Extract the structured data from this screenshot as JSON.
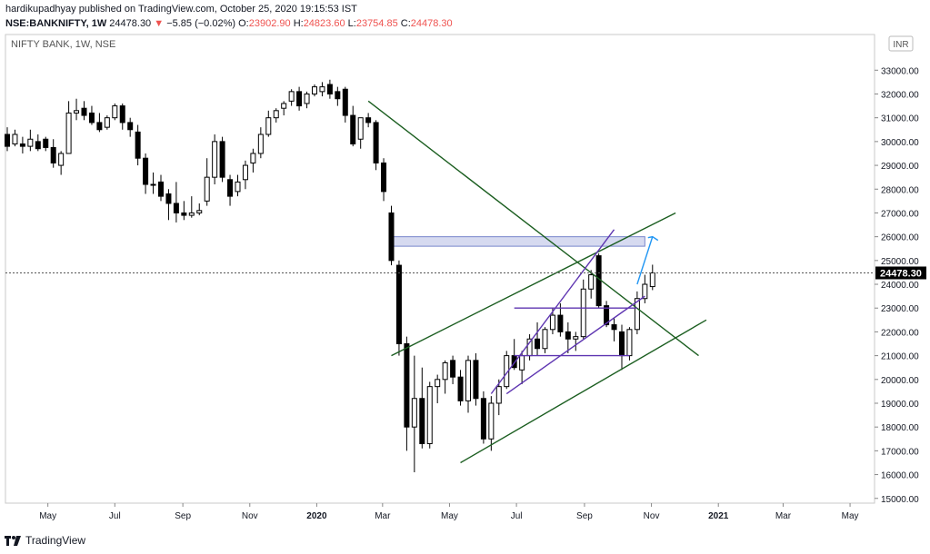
{
  "header": {
    "publisher": "hardikupadhyay published on TradingView.com, October 25, 2020 19:15:53 IST",
    "symbol_line": "NSE:BANKNIFTY, 1W",
    "last": "24478.30",
    "arrow": "▼",
    "change": "−5.85 (−0.02%)",
    "o_label": "O:",
    "o_value": "23902.90",
    "h_label": "H:",
    "h_value": "24823.60",
    "l_label": "L:",
    "l_value": "23754.85",
    "c_label": "C:",
    "c_value": "24478.30"
  },
  "chart_title": "NIFTY BANK, 1W, NSE",
  "currency_badge": "INR",
  "price_label": "24478.30",
  "footer": {
    "brand": "TradingView"
  },
  "colors": {
    "up_fill": "#ffffff",
    "down_fill": "#000000",
    "candle_outline": "#000000",
    "trendline": "#1b5e20",
    "channel": "#5e35b1",
    "rect_fill": "#c5cae9",
    "arrow": "#2196f3"
  },
  "chart_data": {
    "type": "candlestick",
    "title": "NIFTY BANK, 1W, NSE",
    "ylim": [
      14800,
      34500
    ],
    "y_ticks": [
      15000,
      16000,
      17000,
      18000,
      19000,
      20000,
      21000,
      22000,
      23000,
      24000,
      25000,
      26000,
      27000,
      28000,
      29000,
      30000,
      31000,
      32000,
      33000
    ],
    "y_tick_labels": [
      "15000.00",
      "16000.00",
      "17000.00",
      "18000.00",
      "19000.00",
      "20000.00",
      "21000.00",
      "22000.00",
      "23000.00",
      "24000.00",
      "25000.00",
      "26000.00",
      "27000.00",
      "28000.00",
      "29000.00",
      "30000.00",
      "31000.00",
      "32000.00",
      "33000.00"
    ],
    "x_ticks": [
      {
        "label": "May",
        "date": "2019-05-01"
      },
      {
        "label": "Jul",
        "date": "2019-07-01"
      },
      {
        "label": "Sep",
        "date": "2019-09-01"
      },
      {
        "label": "Nov",
        "date": "2019-11-01"
      },
      {
        "label": "2020",
        "date": "2020-01-01"
      },
      {
        "label": "Mar",
        "date": "2020-03-01"
      },
      {
        "label": "May",
        "date": "2020-05-01"
      },
      {
        "label": "Jul",
        "date": "2020-07-01"
      },
      {
        "label": "Sep",
        "date": "2020-09-01"
      },
      {
        "label": "Nov",
        "date": "2020-11-01"
      },
      {
        "label": "2021",
        "date": "2021-01-01"
      },
      {
        "label": "Mar",
        "date": "2021-03-01"
      },
      {
        "label": "May",
        "date": "2021-05-01"
      }
    ],
    "x_range": [
      "2019-03-25",
      "2021-05-20"
    ],
    "candles": [
      {
        "date": "2019-03-25",
        "o": 30300,
        "h": 30600,
        "l": 29600,
        "c": 29800
      },
      {
        "date": "2019-04-01",
        "o": 29900,
        "h": 30500,
        "l": 29800,
        "c": 30300
      },
      {
        "date": "2019-04-08",
        "o": 29900,
        "h": 30200,
        "l": 29500,
        "c": 29800
      },
      {
        "date": "2019-04-15",
        "o": 29800,
        "h": 30500,
        "l": 29600,
        "c": 30100
      },
      {
        "date": "2019-04-22",
        "o": 30000,
        "h": 30300,
        "l": 29600,
        "c": 29700
      },
      {
        "date": "2019-04-29",
        "o": 30100,
        "h": 30200,
        "l": 29600,
        "c": 29750
      },
      {
        "date": "2019-05-06",
        "o": 29750,
        "h": 30100,
        "l": 28900,
        "c": 29100
      },
      {
        "date": "2019-05-13",
        "o": 29000,
        "h": 29600,
        "l": 28600,
        "c": 29500
      },
      {
        "date": "2019-05-20",
        "o": 29500,
        "h": 31700,
        "l": 29500,
        "c": 31200
      },
      {
        "date": "2019-05-27",
        "o": 31200,
        "h": 31800,
        "l": 30900,
        "c": 31300
      },
      {
        "date": "2019-06-03",
        "o": 31400,
        "h": 31700,
        "l": 30900,
        "c": 31100
      },
      {
        "date": "2019-06-10",
        "o": 31200,
        "h": 31500,
        "l": 30700,
        "c": 30800
      },
      {
        "date": "2019-06-17",
        "o": 30800,
        "h": 31200,
        "l": 30400,
        "c": 30500
      },
      {
        "date": "2019-06-24",
        "o": 30600,
        "h": 31100,
        "l": 30500,
        "c": 31000
      },
      {
        "date": "2019-07-01",
        "o": 31000,
        "h": 31600,
        "l": 30900,
        "c": 31500
      },
      {
        "date": "2019-07-08",
        "o": 31500,
        "h": 31600,
        "l": 30500,
        "c": 30800
      },
      {
        "date": "2019-07-15",
        "o": 30800,
        "h": 31000,
        "l": 30200,
        "c": 30500
      },
      {
        "date": "2019-07-22",
        "o": 30400,
        "h": 30700,
        "l": 29000,
        "c": 29300
      },
      {
        "date": "2019-07-29",
        "o": 29300,
        "h": 29500,
        "l": 27800,
        "c": 28200
      },
      {
        "date": "2019-08-05",
        "o": 28200,
        "h": 28700,
        "l": 27800,
        "c": 28200
      },
      {
        "date": "2019-08-12",
        "o": 28300,
        "h": 28600,
        "l": 27500,
        "c": 27700
      },
      {
        "date": "2019-08-19",
        "o": 27800,
        "h": 28000,
        "l": 26700,
        "c": 27400
      },
      {
        "date": "2019-08-26",
        "o": 27400,
        "h": 28300,
        "l": 26600,
        "c": 27000
      },
      {
        "date": "2019-09-02",
        "o": 27000,
        "h": 27500,
        "l": 26700,
        "c": 26900
      },
      {
        "date": "2019-09-09",
        "o": 26900,
        "h": 27700,
        "l": 26800,
        "c": 27000
      },
      {
        "date": "2019-09-16",
        "o": 27000,
        "h": 27400,
        "l": 26900,
        "c": 27100
      },
      {
        "date": "2019-09-23",
        "o": 27500,
        "h": 29300,
        "l": 27300,
        "c": 28500
      },
      {
        "date": "2019-09-30",
        "o": 28500,
        "h": 30300,
        "l": 28200,
        "c": 30000
      },
      {
        "date": "2019-10-07",
        "o": 30000,
        "h": 30200,
        "l": 28300,
        "c": 28500
      },
      {
        "date": "2019-10-14",
        "o": 28400,
        "h": 28600,
        "l": 27300,
        "c": 27700
      },
      {
        "date": "2019-10-21",
        "o": 27900,
        "h": 28600,
        "l": 27700,
        "c": 28300
      },
      {
        "date": "2019-10-28",
        "o": 28400,
        "h": 29200,
        "l": 28000,
        "c": 29000
      },
      {
        "date": "2019-11-04",
        "o": 29100,
        "h": 29700,
        "l": 28700,
        "c": 29500
      },
      {
        "date": "2019-11-11",
        "o": 29500,
        "h": 30600,
        "l": 29300,
        "c": 30300
      },
      {
        "date": "2019-11-18",
        "o": 30300,
        "h": 31300,
        "l": 30200,
        "c": 31000
      },
      {
        "date": "2019-11-25",
        "o": 31000,
        "h": 31400,
        "l": 30800,
        "c": 31300
      },
      {
        "date": "2019-12-02",
        "o": 31400,
        "h": 31700,
        "l": 31100,
        "c": 31600
      },
      {
        "date": "2019-12-09",
        "o": 31700,
        "h": 32200,
        "l": 31500,
        "c": 32100
      },
      {
        "date": "2019-12-16",
        "o": 32100,
        "h": 32300,
        "l": 31300,
        "c": 31500
      },
      {
        "date": "2019-12-23",
        "o": 31600,
        "h": 32100,
        "l": 31400,
        "c": 32000
      },
      {
        "date": "2019-12-30",
        "o": 32000,
        "h": 32400,
        "l": 31900,
        "c": 32300
      },
      {
        "date": "2020-01-06",
        "o": 32100,
        "h": 32500,
        "l": 31900,
        "c": 32300
      },
      {
        "date": "2020-01-13",
        "o": 32400,
        "h": 32600,
        "l": 31800,
        "c": 32000
      },
      {
        "date": "2020-01-20",
        "o": 32100,
        "h": 32300,
        "l": 31500,
        "c": 31800
      },
      {
        "date": "2020-01-27",
        "o": 32200,
        "h": 32300,
        "l": 30800,
        "c": 31100
      },
      {
        "date": "2020-02-03",
        "o": 31100,
        "h": 31500,
        "l": 29800,
        "c": 29900
      },
      {
        "date": "2020-02-10",
        "o": 30100,
        "h": 31000,
        "l": 29700,
        "c": 31000
      },
      {
        "date": "2020-02-17",
        "o": 31000,
        "h": 31200,
        "l": 30600,
        "c": 30800
      },
      {
        "date": "2020-02-24",
        "o": 30800,
        "h": 30900,
        "l": 28800,
        "c": 29100
      },
      {
        "date": "2020-03-02",
        "o": 29100,
        "h": 29300,
        "l": 27500,
        "c": 27900
      },
      {
        "date": "2020-03-09",
        "o": 27000,
        "h": 27300,
        "l": 24800,
        "c": 25000
      },
      {
        "date": "2020-03-16",
        "o": 24800,
        "h": 25000,
        "l": 21000,
        "c": 21500
      },
      {
        "date": "2020-03-23",
        "o": 21500,
        "h": 21800,
        "l": 17000,
        "c": 18000
      },
      {
        "date": "2020-03-30",
        "o": 18000,
        "h": 21000,
        "l": 16100,
        "c": 19200
      },
      {
        "date": "2020-04-06",
        "o": 19200,
        "h": 20500,
        "l": 17100,
        "c": 17300
      },
      {
        "date": "2020-04-13",
        "o": 17300,
        "h": 19900,
        "l": 17100,
        "c": 19700
      },
      {
        "date": "2020-04-20",
        "o": 19700,
        "h": 20200,
        "l": 19000,
        "c": 20000
      },
      {
        "date": "2020-04-27",
        "o": 20000,
        "h": 20800,
        "l": 19400,
        "c": 20700
      },
      {
        "date": "2020-05-04",
        "o": 20800,
        "h": 21000,
        "l": 19800,
        "c": 20100
      },
      {
        "date": "2020-05-11",
        "o": 20100,
        "h": 20400,
        "l": 18900,
        "c": 19100
      },
      {
        "date": "2020-05-18",
        "o": 19100,
        "h": 21000,
        "l": 18600,
        "c": 20800
      },
      {
        "date": "2020-05-25",
        "o": 20800,
        "h": 21100,
        "l": 18900,
        "c": 19200
      },
      {
        "date": "2020-06-01",
        "o": 19200,
        "h": 19500,
        "l": 17300,
        "c": 17500
      },
      {
        "date": "2020-06-08",
        "o": 17500,
        "h": 19300,
        "l": 17000,
        "c": 19000
      },
      {
        "date": "2020-06-15",
        "o": 19000,
        "h": 20000,
        "l": 18500,
        "c": 19700
      },
      {
        "date": "2020-06-22",
        "o": 19700,
        "h": 21200,
        "l": 19600,
        "c": 21000
      },
      {
        "date": "2020-06-29",
        "o": 21000,
        "h": 21700,
        "l": 20400,
        "c": 20500
      },
      {
        "date": "2020-07-06",
        "o": 20400,
        "h": 21200,
        "l": 19800,
        "c": 21000
      },
      {
        "date": "2020-07-13",
        "o": 21000,
        "h": 21900,
        "l": 20800,
        "c": 21700
      },
      {
        "date": "2020-07-20",
        "o": 21700,
        "h": 22400,
        "l": 21000,
        "c": 21300
      },
      {
        "date": "2020-07-27",
        "o": 21300,
        "h": 22200,
        "l": 21100,
        "c": 22100
      },
      {
        "date": "2020-08-03",
        "o": 22100,
        "h": 23000,
        "l": 21900,
        "c": 22700
      },
      {
        "date": "2020-08-10",
        "o": 22700,
        "h": 23200,
        "l": 21800,
        "c": 22000
      },
      {
        "date": "2020-08-17",
        "o": 22000,
        "h": 22400,
        "l": 21100,
        "c": 21700
      },
      {
        "date": "2020-08-24",
        "o": 21700,
        "h": 22000,
        "l": 21200,
        "c": 21800
      },
      {
        "date": "2020-08-31",
        "o": 21800,
        "h": 24200,
        "l": 21700,
        "c": 23800
      },
      {
        "date": "2020-09-07",
        "o": 23800,
        "h": 24600,
        "l": 23400,
        "c": 24400
      },
      {
        "date": "2020-09-14",
        "o": 25200,
        "h": 25300,
        "l": 23000,
        "c": 23100
      },
      {
        "date": "2020-09-21",
        "o": 23100,
        "h": 23300,
        "l": 22200,
        "c": 22300
      },
      {
        "date": "2020-09-28",
        "o": 22300,
        "h": 22600,
        "l": 21600,
        "c": 22100
      },
      {
        "date": "2020-10-05",
        "o": 22000,
        "h": 22300,
        "l": 20400,
        "c": 21000
      },
      {
        "date": "2020-10-12",
        "o": 21000,
        "h": 22200,
        "l": 20800,
        "c": 22100
      },
      {
        "date": "2020-10-19",
        "o": 22100,
        "h": 23700,
        "l": 21900,
        "c": 23400
      },
      {
        "date": "2020-10-26",
        "o": 23400,
        "h": 24400,
        "l": 23200,
        "c": 24000
      },
      {
        "date": "2020-11-02",
        "o": 23902.9,
        "h": 24823.6,
        "l": 23754.85,
        "c": 24478.3
      }
    ],
    "drawings": {
      "trendlines": [
        {
          "from": [
            "2020-02-17",
            31700
          ],
          "to": [
            "2020-12-14",
            21000
          ]
        },
        {
          "from": [
            "2020-03-09",
            21000
          ],
          "to": [
            "2020-11-23",
            27000
          ]
        },
        {
          "from": [
            "2020-05-11",
            16500
          ],
          "to": [
            "2020-12-21",
            22500
          ]
        }
      ],
      "channel_lines": [
        {
          "from": [
            "2020-06-08",
            19400
          ],
          "to": [
            "2020-09-28",
            26300
          ]
        },
        {
          "from": [
            "2020-06-22",
            19400
          ],
          "to": [
            "2020-10-26",
            23500
          ]
        },
        {
          "from": [
            "2020-06-29",
            23000
          ],
          "to": [
            "2020-10-19",
            23000
          ]
        },
        {
          "from": [
            "2020-06-29",
            21000
          ],
          "to": [
            "2020-10-12",
            21000
          ]
        }
      ],
      "horizontal_zone": {
        "from": "2020-03-09",
        "to": "2020-10-26",
        "y_low": 25600,
        "y_high": 26000
      },
      "projection_arrow": {
        "from": [
          "2020-10-19",
          24000
        ],
        "to": [
          "2020-11-02",
          26000
        ]
      }
    }
  }
}
